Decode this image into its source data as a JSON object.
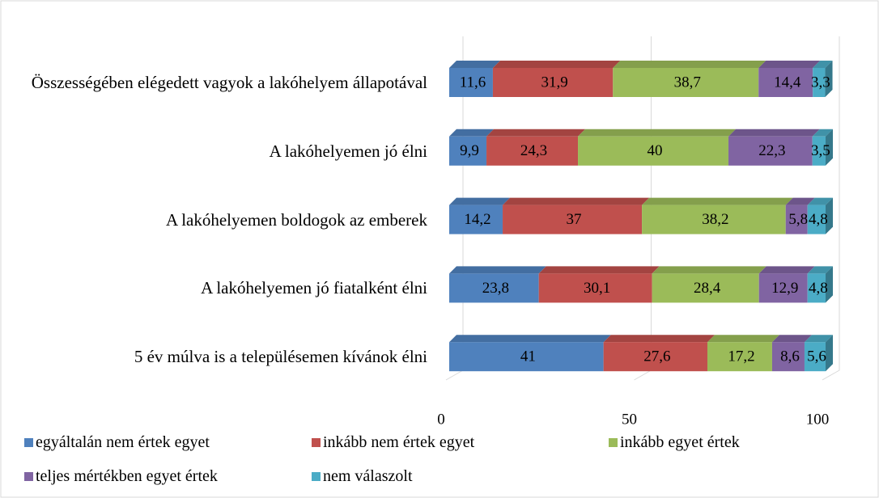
{
  "chart_data": {
    "type": "stacked-bar",
    "categories": [
      "Összességében elégedett vagyok a lakóhelyem állapotával",
      "A lakóhelyemen jó élni",
      "A lakóhelyemen boldogok az emberek",
      "A lakóhelyemen jó fiatalként élni",
      "5 év múlva is a településemen kívánok élni"
    ],
    "series": [
      {
        "name": "egyáltalán nem értek egyet",
        "color": "#4f81bd",
        "values": [
          11.6,
          9.9,
          14.2,
          23.8,
          41
        ],
        "value_labels": [
          "11,6",
          "9,9",
          "14,2",
          "23,8",
          "41"
        ]
      },
      {
        "name": "inkább nem értek egyet",
        "color": "#c0504d",
        "values": [
          31.9,
          24.3,
          37,
          30.1,
          27.6
        ],
        "value_labels": [
          "31,9",
          "24,3",
          "37",
          "30,1",
          "27,6"
        ]
      },
      {
        "name": "inkább egyet értek",
        "color": "#9bbb59",
        "values": [
          38.7,
          40,
          38.2,
          28.4,
          17.2
        ],
        "value_labels": [
          "38,7",
          "40",
          "38,2",
          "28,4",
          "17,2"
        ]
      },
      {
        "name": "teljes mértékben egyet értek",
        "color": "#8064a2",
        "values": [
          14.4,
          22.3,
          5.8,
          12.9,
          8.6
        ],
        "value_labels": [
          "14,4",
          "22,3",
          "5,8",
          "12,9",
          "8,6"
        ]
      },
      {
        "name": "nem válaszolt",
        "color": "#4bacc6",
        "values": [
          3.3,
          3.5,
          4.8,
          4.8,
          5.6
        ],
        "value_labels": [
          "3,3",
          "3,5",
          "4,8",
          "4,8",
          "5,6"
        ]
      }
    ],
    "xlim": [
      0,
      100
    ],
    "xticks": [
      0,
      50,
      100
    ],
    "grid": true,
    "legend": "bottom"
  }
}
